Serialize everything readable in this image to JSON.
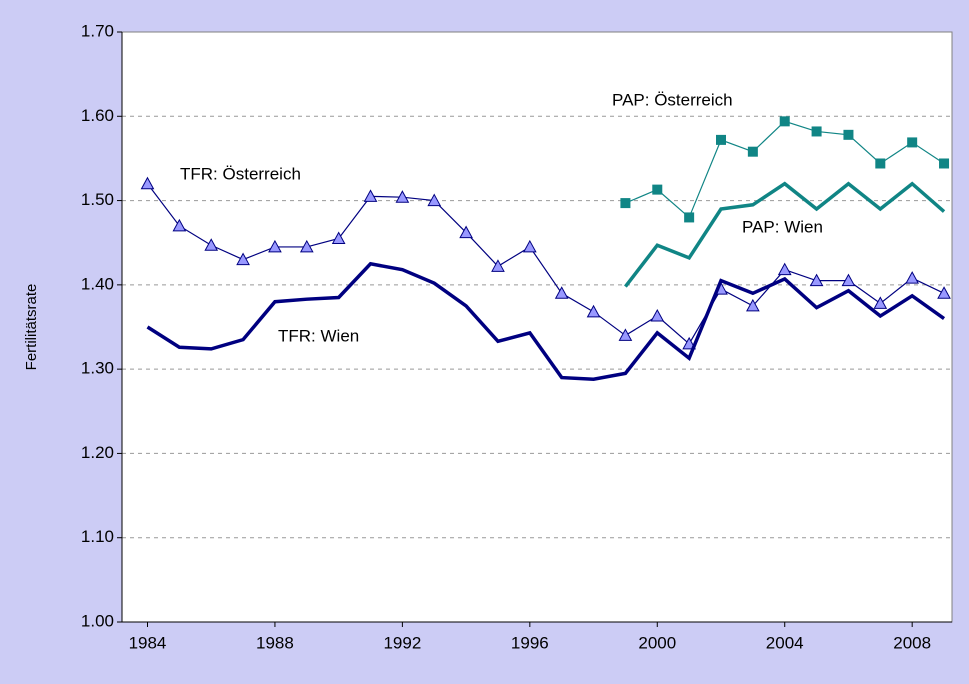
{
  "chart_data": {
    "type": "line",
    "ylabel": "Fertilitätsrate",
    "x": [
      1984,
      1985,
      1986,
      1987,
      1988,
      1989,
      1990,
      1991,
      1992,
      1993,
      1994,
      1995,
      1996,
      1997,
      1998,
      1999,
      2000,
      2001,
      2002,
      2003,
      2004,
      2005,
      2006,
      2007,
      2008,
      2009
    ],
    "series": [
      {
        "name": "TFR: Österreich",
        "color": "#000080",
        "marker": "triangle",
        "values": [
          1.52,
          1.47,
          1.447,
          1.43,
          1.445,
          1.445,
          1.455,
          1.505,
          1.504,
          1.5,
          1.462,
          1.422,
          1.445,
          1.39,
          1.368,
          1.34,
          1.363,
          1.33,
          1.395,
          1.375,
          1.418,
          1.405,
          1.405,
          1.378,
          1.408,
          1.39
        ]
      },
      {
        "name": "TFR: Wien",
        "color": "#000080",
        "marker": "none",
        "values": [
          1.35,
          1.326,
          1.324,
          1.335,
          1.38,
          1.383,
          1.385,
          1.425,
          1.418,
          1.402,
          1.375,
          1.333,
          1.343,
          1.29,
          1.288,
          1.295,
          1.343,
          1.313,
          1.405,
          1.39,
          1.407,
          1.373,
          1.393,
          1.363,
          1.387,
          1.36
        ]
      },
      {
        "name": "PAP: Österreich",
        "color": "#108585",
        "marker": "square",
        "values": [
          null,
          null,
          null,
          null,
          null,
          null,
          null,
          null,
          null,
          null,
          null,
          null,
          null,
          null,
          null,
          1.497,
          1.513,
          1.48,
          1.572,
          1.558,
          1.594,
          1.582,
          1.578,
          1.544,
          1.569,
          1.544
        ]
      },
      {
        "name": "PAP: Wien",
        "color": "#108585",
        "marker": "none",
        "values": [
          null,
          null,
          null,
          null,
          null,
          null,
          null,
          null,
          null,
          null,
          null,
          null,
          null,
          null,
          null,
          1.398,
          1.447,
          1.432,
          1.49,
          1.495,
          1.52,
          1.49,
          1.52,
          1.49,
          1.52,
          1.487
        ]
      }
    ],
    "xlim": [
      1983.2,
      2009.25
    ],
    "xticks": [
      1984,
      1988,
      1992,
      1996,
      2000,
      2004,
      2008
    ],
    "ylim": [
      1.0,
      1.7
    ],
    "yticks": [
      {
        "value": 1.0,
        "label": "1.00"
      },
      {
        "value": 1.1,
        "label": "1.10"
      },
      {
        "value": 1.2,
        "label": "1.20"
      },
      {
        "value": 1.3,
        "label": "1.30"
      },
      {
        "value": 1.4,
        "label": "1.40"
      },
      {
        "value": 1.5,
        "label": "1.50"
      },
      {
        "value": 1.6,
        "label": "1.60"
      },
      {
        "value": 1.7,
        "label": "1.70"
      }
    ],
    "grid": true
  }
}
